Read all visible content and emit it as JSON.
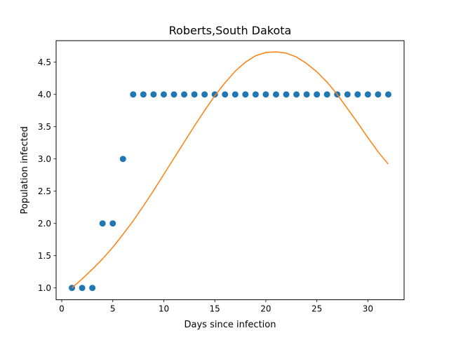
{
  "chart_data": {
    "type": "scatter",
    "title": "Roberts,South Dakota",
    "xlabel": "Days since infection",
    "ylabel": "Population infected",
    "xlim": [
      -0.55,
      33.55
    ],
    "ylim": [
      0.8165,
      4.8335
    ],
    "xticks": [
      0,
      5,
      10,
      15,
      20,
      25,
      30
    ],
    "xtick_labels": [
      "0",
      "5",
      "10",
      "15",
      "20",
      "25",
      "30"
    ],
    "yticks": [
      1.0,
      1.5,
      2.0,
      2.5,
      3.0,
      3.5,
      4.0,
      4.5
    ],
    "ytick_labels": [
      "1.0",
      "1.5",
      "2.0",
      "2.5",
      "3.0",
      "3.5",
      "4.0",
      "4.5"
    ],
    "grid": false,
    "legend": "none",
    "series": [
      {
        "kind": "scatter",
        "color": "#1f77b4",
        "x": [
          1,
          2,
          3,
          4,
          5,
          6,
          7,
          8,
          9,
          10,
          11,
          12,
          13,
          14,
          15,
          16,
          17,
          18,
          19,
          20,
          21,
          22,
          23,
          24,
          25,
          26,
          27,
          28,
          29,
          30,
          31,
          32
        ],
        "y": [
          1,
          1,
          1,
          2,
          2,
          3,
          4,
          4,
          4,
          4,
          4,
          4,
          4,
          4,
          4,
          4,
          4,
          4,
          4,
          4,
          4,
          4,
          4,
          4,
          4,
          4,
          4,
          4,
          4,
          4,
          4,
          4
        ]
      },
      {
        "kind": "line",
        "color": "#ff7f0e",
        "x": [
          1,
          2,
          3,
          4,
          5,
          6,
          7,
          8,
          9,
          10,
          11,
          12,
          13,
          14,
          15,
          16,
          17,
          18,
          19,
          20,
          21,
          22,
          23,
          24,
          25,
          26,
          27,
          28,
          29,
          30,
          31,
          32
        ],
        "y": [
          1.0,
          1.14,
          1.29,
          1.45,
          1.63,
          1.83,
          2.04,
          2.27,
          2.51,
          2.76,
          3.01,
          3.26,
          3.51,
          3.75,
          3.98,
          4.18,
          4.36,
          4.5,
          4.6,
          4.65,
          4.66,
          4.64,
          4.58,
          4.48,
          4.35,
          4.19,
          4.0,
          3.78,
          3.56,
          3.33,
          3.11,
          2.92
        ]
      }
    ]
  }
}
